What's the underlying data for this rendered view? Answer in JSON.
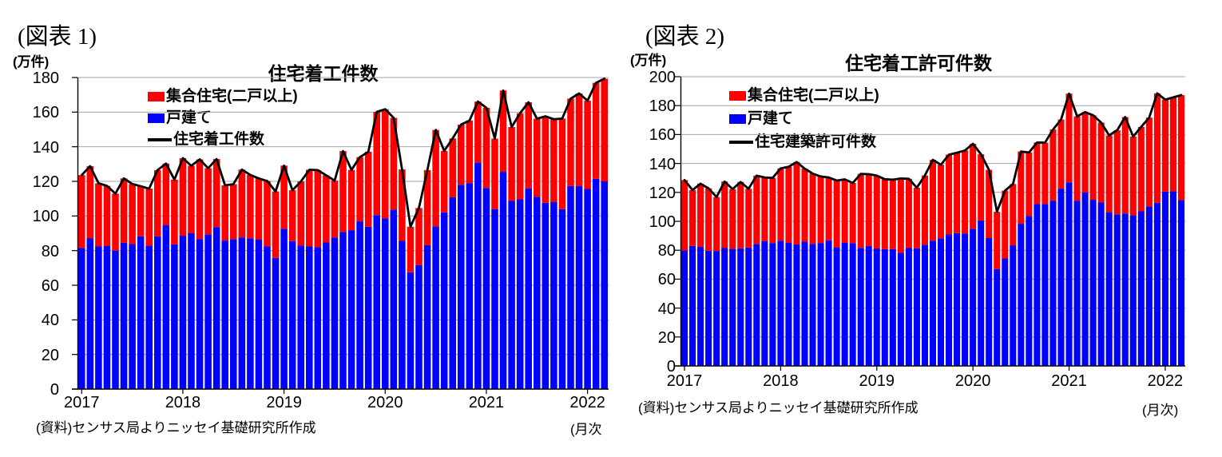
{
  "page": {
    "background": "#ffffff"
  },
  "figures": [
    {
      "tag": "(図表 1)",
      "unit_label": "(万件)",
      "title": "住宅着工件数",
      "source_note": "(資料)センサス局よりニッセイ基礎研究所作成",
      "freq_note": "(月次",
      "legend": [
        {
          "label": "集合住宅(二戸以上)",
          "marker": "box",
          "color": "#ff0000"
        },
        {
          "label": "戸建て",
          "marker": "box",
          "color": "#0000ff"
        },
        {
          "label": "住宅着工件数",
          "marker": "line",
          "color": "#000000"
        }
      ],
      "chart_data": {
        "type": "stacked-bar-with-line",
        "title": "住宅着工件数",
        "ylabel": "(万件)",
        "xlabel": "(月次",
        "ylim": [
          0,
          180
        ],
        "ytick_step": 20,
        "y_tick_labels": [
          "180",
          "160",
          "140",
          "120",
          "100",
          "80",
          "60",
          "40",
          "20",
          "0"
        ],
        "x_tick_labels": [
          "2017",
          "2018",
          "2019",
          "2020",
          "2021",
          "2022"
        ],
        "grid": true,
        "legend_position": "top-left-inside",
        "x": [
          "2017-01",
          "2017-02",
          "2017-03",
          "2017-04",
          "2017-05",
          "2017-06",
          "2017-07",
          "2017-08",
          "2017-09",
          "2017-10",
          "2017-11",
          "2017-12",
          "2018-01",
          "2018-02",
          "2018-03",
          "2018-04",
          "2018-05",
          "2018-06",
          "2018-07",
          "2018-08",
          "2018-09",
          "2018-10",
          "2018-11",
          "2018-12",
          "2019-01",
          "2019-02",
          "2019-03",
          "2019-04",
          "2019-05",
          "2019-06",
          "2019-07",
          "2019-08",
          "2019-09",
          "2019-10",
          "2019-11",
          "2019-12",
          "2020-01",
          "2020-02",
          "2020-03",
          "2020-04",
          "2020-05",
          "2020-06",
          "2020-07",
          "2020-08",
          "2020-09",
          "2020-10",
          "2020-11",
          "2020-12",
          "2021-01",
          "2021-02",
          "2021-03",
          "2021-04",
          "2021-05",
          "2021-06",
          "2021-07",
          "2021-08",
          "2021-09",
          "2021-10",
          "2021-11",
          "2021-12",
          "2022-01",
          "2022-02",
          "2022-03"
        ],
        "series": [
          {
            "name": "戸建て",
            "type": "bar",
            "color": "#0000ff",
            "values": [
              81.5,
              87.2,
              82.4,
              82.6,
              80.0,
              84.5,
              83.8,
              88.3,
              82.9,
              88.3,
              94.8,
              83.6,
              88.6,
              90.0,
              86.7,
              89.4,
              93.6,
              85.8,
              86.6,
              87.6,
              87.1,
              86.5,
              82.4,
              75.8,
              92.6,
              85.5,
              83.0,
              82.4,
              82.0,
              84.7,
              87.6,
              90.8,
              91.8,
              96.9,
              93.8,
              100.5,
              98.7,
              103.7,
              85.6,
              67.5,
              71.7,
              83.1,
              94.0,
              102.1,
              110.8,
              118.0,
              119.0,
              130.8,
              116.2,
              104.0,
              125.5,
              108.7,
              109.6,
              116.0,
              111.1,
              107.6,
              108.0,
              103.9,
              117.3,
              117.2,
              115.6,
              121.5,
              120.0
            ]
          },
          {
            "name": "集合住宅(二戸以上)",
            "type": "bar",
            "stacked_on": "戸建て",
            "color": "#ff0000",
            "values": [
              42.1,
              41.6,
              36.5,
              34.8,
              32.9,
              37.2,
              34.7,
              28.9,
              32.9,
              38.2,
              35.5,
              37.4,
              44.8,
              39.0,
              46.0,
              38.2,
              39.3,
              31.9,
              31.8,
              39.2,
              36.6,
              35.2,
              37.8,
              38.4,
              36.5,
              29.4,
              36.9,
              44.3,
              44.5,
              38.8,
              32.8,
              46.7,
              34.8,
              37.1,
              43.3,
              59.6,
              63.0,
              53.0,
              41.3,
              26.3,
              32.9,
              43.4,
              55.7,
              35.5,
              34.0,
              34.8,
              36.1,
              35.3,
              46.3,
              40.7,
              47.0,
              42.7,
              49.8,
              49.7,
              45.1,
              50.0,
              47.9,
              52.4,
              50.5,
              53.6,
              51.0,
              55.4,
              59.3
            ]
          },
          {
            "name": "住宅着工件数",
            "type": "line",
            "color": "#000000",
            "values": [
              123.6,
              128.8,
              118.9,
              117.4,
              112.9,
              121.7,
              118.5,
              117.2,
              115.8,
              126.5,
              130.3,
              121.0,
              133.4,
              129.0,
              132.7,
              127.6,
              132.9,
              117.7,
              118.4,
              126.8,
              123.7,
              121.7,
              120.2,
              114.2,
              129.1,
              114.9,
              119.9,
              126.7,
              126.5,
              123.5,
              120.4,
              137.5,
              126.6,
              134.0,
              137.1,
              160.1,
              161.7,
              156.7,
              126.9,
              93.8,
              104.6,
              126.5,
              149.7,
              137.6,
              144.8,
              152.8,
              155.1,
              166.1,
              162.5,
              144.7,
              172.5,
              151.4,
              159.4,
              165.7,
              156.2,
              157.6,
              155.9,
              156.3,
              167.8,
              170.8,
              166.6,
              176.9,
              179.3
            ]
          }
        ]
      }
    },
    {
      "tag": "(図表 2)",
      "unit_label": "(万件)",
      "title": "住宅着工許可件数",
      "source_note": "(資料)センサス局よりニッセイ基礎研究所作成",
      "freq_note": "(月次)",
      "legend": [
        {
          "label": "集合住宅(二戸以上)",
          "marker": "box",
          "color": "#ff0000"
        },
        {
          "label": "戸建て",
          "marker": "box",
          "color": "#0000ff"
        },
        {
          "label": "住宅建築許可件数",
          "marker": "line",
          "color": "#000000"
        }
      ],
      "chart_data": {
        "type": "stacked-bar-with-line",
        "title": "住宅着工許可件数",
        "ylabel": "(万件)",
        "xlabel": "(月次)",
        "ylim": [
          0,
          200
        ],
        "ytick_step": 20,
        "y_tick_labels": [
          "200",
          "180",
          "160",
          "140",
          "120",
          "100",
          "80",
          "60",
          "40",
          "20",
          "0"
        ],
        "x_tick_labels": [
          "2017",
          "2018",
          "2019",
          "2020",
          "2021",
          "2022"
        ],
        "grid": true,
        "legend_position": "top-left-inside",
        "x": [
          "2017-01",
          "2017-02",
          "2017-03",
          "2017-04",
          "2017-05",
          "2017-06",
          "2017-07",
          "2017-08",
          "2017-09",
          "2017-10",
          "2017-11",
          "2017-12",
          "2018-01",
          "2018-02",
          "2018-03",
          "2018-04",
          "2018-05",
          "2018-06",
          "2018-07",
          "2018-08",
          "2018-09",
          "2018-10",
          "2018-11",
          "2018-12",
          "2019-01",
          "2019-02",
          "2019-03",
          "2019-04",
          "2019-05",
          "2019-06",
          "2019-07",
          "2019-08",
          "2019-09",
          "2019-10",
          "2019-11",
          "2019-12",
          "2020-01",
          "2020-02",
          "2020-03",
          "2020-04",
          "2020-05",
          "2020-06",
          "2020-07",
          "2020-08",
          "2020-09",
          "2020-10",
          "2020-11",
          "2020-12",
          "2021-01",
          "2021-02",
          "2021-03",
          "2021-04",
          "2021-05",
          "2021-06",
          "2021-07",
          "2021-08",
          "2021-09",
          "2021-10",
          "2021-11",
          "2021-12",
          "2022-01",
          "2022-02",
          "2022-03"
        ],
        "series": [
          {
            "name": "戸建て",
            "type": "bar",
            "color": "#0000ff",
            "values": [
              79.9,
              83.0,
              82.3,
              79.7,
              79.5,
              81.5,
              81.0,
              81.3,
              81.9,
              84.4,
              86.2,
              85.0,
              86.6,
              85.3,
              84.0,
              85.9,
              84.4,
              85.0,
              86.9,
              82.0,
              85.1,
              84.9,
              81.6,
              82.9,
              81.2,
              80.7,
              80.8,
              78.2,
              81.5,
              81.3,
              83.8,
              86.6,
              88.2,
              90.9,
              91.8,
              91.6,
              94.9,
              100.5,
              88.4,
              66.9,
              74.3,
              83.4,
              98.3,
              103.6,
              111.9,
              112.0,
              114.3,
              122.6,
              126.9,
              114.3,
              119.9,
              114.9,
              113.0,
              106.3,
              104.8,
              105.4,
              104.1,
              106.9,
              110.3,
              112.8,
              120.5,
              120.7,
              114.7
            ]
          },
          {
            "name": "集合住宅(二戸以上)",
            "type": "bar",
            "stacked_on": "戸建て",
            "color": "#ff0000",
            "values": [
              48.6,
              38.6,
              43.7,
              43.1,
              37.3,
              46.0,
              41.3,
              45.9,
              40.6,
              47.2,
              44.1,
              45.0,
              50.0,
              52.4,
              57.0,
              50.5,
              48.6,
              46.0,
              43.4,
              46.2,
              43.9,
              41.6,
              51.2,
              49.7,
              50.4,
              48.4,
              48.0,
              51.4,
              47.9,
              41.9,
              47.9,
              55.9,
              50.9,
              55.2,
              55.6,
              57.4,
              58.7,
              45.9,
              47.2,
              39.7,
              46.9,
              42.4,
              50.0,
              44.0,
              42.6,
              42.4,
              49.2,
              47.8,
              61.4,
              58.3,
              55.6,
              58.4,
              55.3,
              53.1,
              58.2,
              66.7,
              54.5,
              58.4,
              61.4,
              75.7,
              63.6,
              65.0,
              72.6
            ]
          },
          {
            "name": "住宅建築許可件数",
            "type": "line",
            "color": "#000000",
            "values": [
              128.5,
              121.6,
              126.0,
              122.8,
              116.8,
              127.5,
              122.3,
              127.2,
              122.5,
              131.6,
              130.3,
              130.0,
              136.6,
              137.7,
              141.0,
              136.4,
              133.0,
              131.0,
              130.3,
              128.2,
              129.0,
              126.5,
              132.8,
              132.6,
              131.6,
              129.1,
              128.8,
              129.6,
              129.4,
              123.2,
              131.7,
              142.5,
              139.1,
              146.1,
              147.4,
              149.0,
              153.6,
              146.4,
              135.6,
              106.6,
              121.2,
              125.8,
              148.3,
              147.6,
              154.5,
              154.4,
              163.5,
              170.4,
              188.3,
              172.6,
              175.5,
              173.3,
              168.3,
              159.4,
              163.0,
              172.1,
              158.6,
              165.3,
              171.7,
              188.5,
              184.1,
              185.7,
              187.3
            ]
          }
        ]
      }
    }
  ]
}
